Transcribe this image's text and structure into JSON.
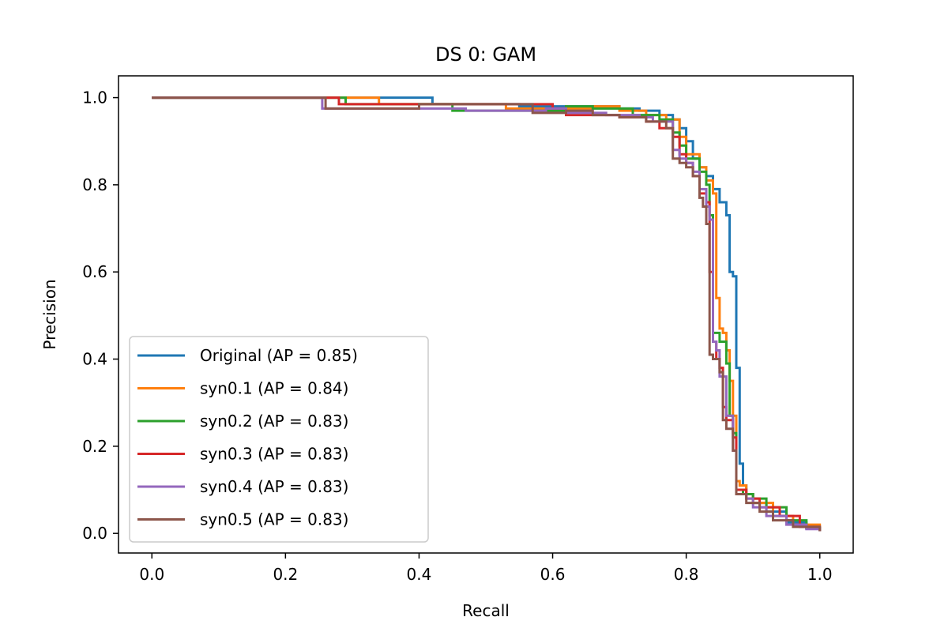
{
  "chart_data": {
    "type": "line",
    "title": "DS 0: GAM",
    "xlabel": "Recall",
    "ylabel": "Precision",
    "xlim": [
      -0.05,
      1.05
    ],
    "ylim": [
      -0.045,
      1.05
    ],
    "xticks": [
      0.0,
      0.2,
      0.4,
      0.6,
      0.8,
      1.0
    ],
    "xtick_labels": [
      "0.0",
      "0.2",
      "0.4",
      "0.6",
      "0.8",
      "1.0"
    ],
    "yticks": [
      0.0,
      0.2,
      0.4,
      0.6,
      0.8,
      1.0
    ],
    "ytick_labels": [
      "0.0",
      "0.2",
      "0.4",
      "0.6",
      "0.8",
      "1.0"
    ],
    "grid": false,
    "legend_position": "lower-left",
    "series": [
      {
        "name": "Original (AP = 0.85)",
        "color": "#1f77b4",
        "step": true,
        "points": [
          [
            0.0,
            1.0
          ],
          [
            0.42,
            1.0
          ],
          [
            0.42,
            0.985
          ],
          [
            0.55,
            0.98
          ],
          [
            0.7,
            0.975
          ],
          [
            0.73,
            0.97
          ],
          [
            0.76,
            0.96
          ],
          [
            0.78,
            0.95
          ],
          [
            0.79,
            0.93
          ],
          [
            0.8,
            0.9
          ],
          [
            0.81,
            0.86
          ],
          [
            0.82,
            0.84
          ],
          [
            0.83,
            0.82
          ],
          [
            0.84,
            0.79
          ],
          [
            0.85,
            0.76
          ],
          [
            0.86,
            0.73
          ],
          [
            0.865,
            0.6
          ],
          [
            0.87,
            0.59
          ],
          [
            0.875,
            0.38
          ],
          [
            0.88,
            0.16
          ],
          [
            0.885,
            0.11
          ],
          [
            0.89,
            0.09
          ],
          [
            0.9,
            0.07
          ],
          [
            0.92,
            0.05
          ],
          [
            0.95,
            0.025
          ],
          [
            0.98,
            0.012
          ],
          [
            1.0,
            0.005
          ]
        ]
      },
      {
        "name": "syn0.1 (AP = 0.84)",
        "color": "#ff7f0e",
        "step": true,
        "points": [
          [
            0.0,
            1.0
          ],
          [
            0.34,
            1.0
          ],
          [
            0.34,
            0.985
          ],
          [
            0.53,
            0.985
          ],
          [
            0.53,
            0.975
          ],
          [
            0.66,
            0.98
          ],
          [
            0.7,
            0.97
          ],
          [
            0.74,
            0.96
          ],
          [
            0.77,
            0.95
          ],
          [
            0.79,
            0.91
          ],
          [
            0.8,
            0.87
          ],
          [
            0.82,
            0.84
          ],
          [
            0.83,
            0.81
          ],
          [
            0.84,
            0.78
          ],
          [
            0.845,
            0.54
          ],
          [
            0.85,
            0.47
          ],
          [
            0.855,
            0.46
          ],
          [
            0.86,
            0.42
          ],
          [
            0.865,
            0.35
          ],
          [
            0.87,
            0.27
          ],
          [
            0.875,
            0.12
          ],
          [
            0.88,
            0.11
          ],
          [
            0.89,
            0.09
          ],
          [
            0.9,
            0.07
          ],
          [
            0.93,
            0.04
          ],
          [
            0.96,
            0.02
          ],
          [
            1.0,
            0.005
          ]
        ]
      },
      {
        "name": "syn0.2 (AP = 0.83)",
        "color": "#2ca02c",
        "step": true,
        "points": [
          [
            0.0,
            1.0
          ],
          [
            0.29,
            1.0
          ],
          [
            0.29,
            0.985
          ],
          [
            0.45,
            0.985
          ],
          [
            0.45,
            0.97
          ],
          [
            0.62,
            0.98
          ],
          [
            0.66,
            0.975
          ],
          [
            0.72,
            0.96
          ],
          [
            0.76,
            0.95
          ],
          [
            0.78,
            0.92
          ],
          [
            0.79,
            0.89
          ],
          [
            0.8,
            0.86
          ],
          [
            0.82,
            0.83
          ],
          [
            0.83,
            0.8
          ],
          [
            0.835,
            0.73
          ],
          [
            0.84,
            0.46
          ],
          [
            0.85,
            0.44
          ],
          [
            0.86,
            0.39
          ],
          [
            0.865,
            0.27
          ],
          [
            0.87,
            0.23
          ],
          [
            0.875,
            0.1
          ],
          [
            0.885,
            0.09
          ],
          [
            0.9,
            0.08
          ],
          [
            0.92,
            0.06
          ],
          [
            0.95,
            0.03
          ],
          [
            0.98,
            0.012
          ],
          [
            1.0,
            0.005
          ]
        ]
      },
      {
        "name": "syn0.3 (AP = 0.83)",
        "color": "#d62728",
        "step": true,
        "points": [
          [
            0.0,
            1.0
          ],
          [
            0.28,
            1.0
          ],
          [
            0.28,
            0.985
          ],
          [
            0.44,
            0.985
          ],
          [
            0.6,
            0.975
          ],
          [
            0.62,
            0.96
          ],
          [
            0.7,
            0.955
          ],
          [
            0.74,
            0.945
          ],
          [
            0.76,
            0.93
          ],
          [
            0.78,
            0.91
          ],
          [
            0.79,
            0.87
          ],
          [
            0.8,
            0.85
          ],
          [
            0.81,
            0.82
          ],
          [
            0.82,
            0.78
          ],
          [
            0.83,
            0.76
          ],
          [
            0.835,
            0.6
          ],
          [
            0.84,
            0.44
          ],
          [
            0.845,
            0.4
          ],
          [
            0.85,
            0.38
          ],
          [
            0.855,
            0.29
          ],
          [
            0.86,
            0.26
          ],
          [
            0.87,
            0.22
          ],
          [
            0.875,
            0.1
          ],
          [
            0.89,
            0.08
          ],
          [
            0.91,
            0.06
          ],
          [
            0.94,
            0.04
          ],
          [
            0.97,
            0.015
          ],
          [
            1.0,
            0.005
          ]
        ]
      },
      {
        "name": "syn0.4 (AP = 0.83)",
        "color": "#9467bd",
        "step": true,
        "points": [
          [
            0.0,
            1.0
          ],
          [
            0.255,
            1.0
          ],
          [
            0.255,
            0.975
          ],
          [
            0.47,
            0.97
          ],
          [
            0.59,
            0.975
          ],
          [
            0.62,
            0.965
          ],
          [
            0.68,
            0.96
          ],
          [
            0.73,
            0.955
          ],
          [
            0.75,
            0.945
          ],
          [
            0.78,
            0.88
          ],
          [
            0.79,
            0.86
          ],
          [
            0.8,
            0.85
          ],
          [
            0.81,
            0.83
          ],
          [
            0.82,
            0.79
          ],
          [
            0.83,
            0.75
          ],
          [
            0.835,
            0.72
          ],
          [
            0.84,
            0.44
          ],
          [
            0.845,
            0.42
          ],
          [
            0.85,
            0.36
          ],
          [
            0.86,
            0.27
          ],
          [
            0.87,
            0.19
          ],
          [
            0.875,
            0.09
          ],
          [
            0.89,
            0.08
          ],
          [
            0.9,
            0.06
          ],
          [
            0.92,
            0.04
          ],
          [
            0.95,
            0.02
          ],
          [
            0.98,
            0.01
          ],
          [
            1.0,
            0.005
          ]
        ]
      },
      {
        "name": "syn0.5 (AP = 0.83)",
        "color": "#8c564b",
        "step": true,
        "points": [
          [
            0.0,
            1.0
          ],
          [
            0.26,
            1.0
          ],
          [
            0.26,
            0.975
          ],
          [
            0.4,
            0.985
          ],
          [
            0.57,
            0.975
          ],
          [
            0.57,
            0.965
          ],
          [
            0.62,
            0.97
          ],
          [
            0.66,
            0.96
          ],
          [
            0.7,
            0.955
          ],
          [
            0.74,
            0.945
          ],
          [
            0.77,
            0.93
          ],
          [
            0.78,
            0.86
          ],
          [
            0.79,
            0.85
          ],
          [
            0.8,
            0.84
          ],
          [
            0.81,
            0.82
          ],
          [
            0.82,
            0.77
          ],
          [
            0.825,
            0.75
          ],
          [
            0.83,
            0.71
          ],
          [
            0.835,
            0.41
          ],
          [
            0.84,
            0.4
          ],
          [
            0.85,
            0.37
          ],
          [
            0.855,
            0.26
          ],
          [
            0.86,
            0.24
          ],
          [
            0.87,
            0.19
          ],
          [
            0.875,
            0.09
          ],
          [
            0.89,
            0.07
          ],
          [
            0.91,
            0.05
          ],
          [
            0.93,
            0.03
          ],
          [
            0.96,
            0.015
          ],
          [
            1.0,
            0.005
          ]
        ]
      }
    ]
  }
}
